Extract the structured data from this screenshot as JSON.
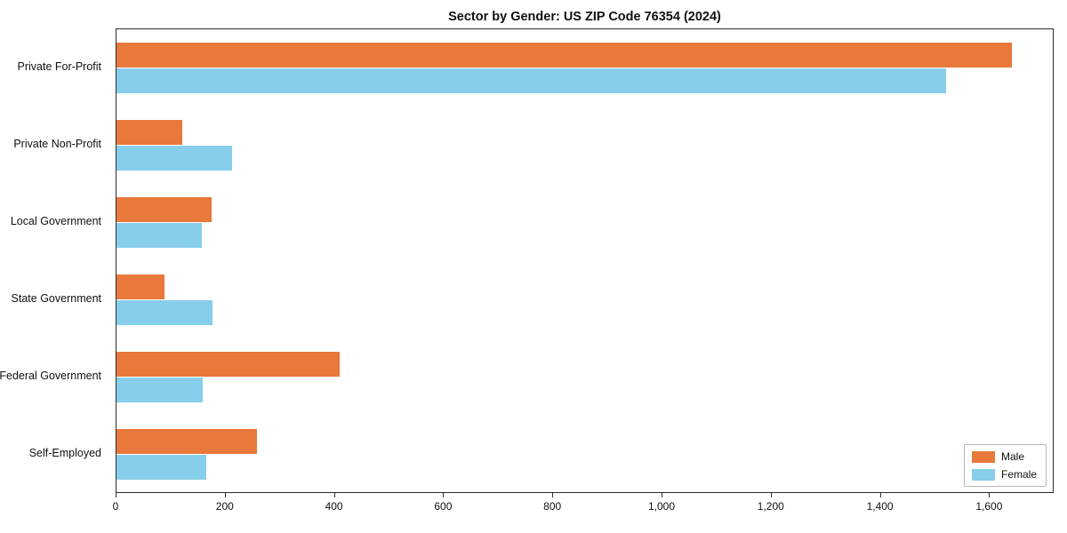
{
  "chart_data": {
    "type": "bar",
    "orientation": "horizontal",
    "title": "Sector by Gender: US ZIP Code 76354 (2024)",
    "categories": [
      "Private For-Profit",
      "Private Non-Profit",
      "Local Government",
      "State Government",
      "Federal Government",
      "Self-Employed"
    ],
    "series": [
      {
        "name": "Male",
        "color": "#E8793A",
        "values": [
          1640,
          120,
          175,
          88,
          408,
          257
        ]
      },
      {
        "name": "Female",
        "color": "#87CEEB",
        "values": [
          1520,
          212,
          156,
          176,
          158,
          164
        ]
      }
    ],
    "xlim": [
      0,
      1715
    ],
    "xticks": [
      0,
      200,
      400,
      600,
      800,
      1000,
      1200,
      1400,
      1600
    ],
    "xtick_labels": [
      "0",
      "200",
      "400",
      "600",
      "800",
      "1,000",
      "1,200",
      "1,400",
      "1,600"
    ],
    "xlabel": "",
    "ylabel": "",
    "grid": false,
    "legend": {
      "position": "lower right",
      "entries": [
        "Male",
        "Female"
      ]
    }
  }
}
